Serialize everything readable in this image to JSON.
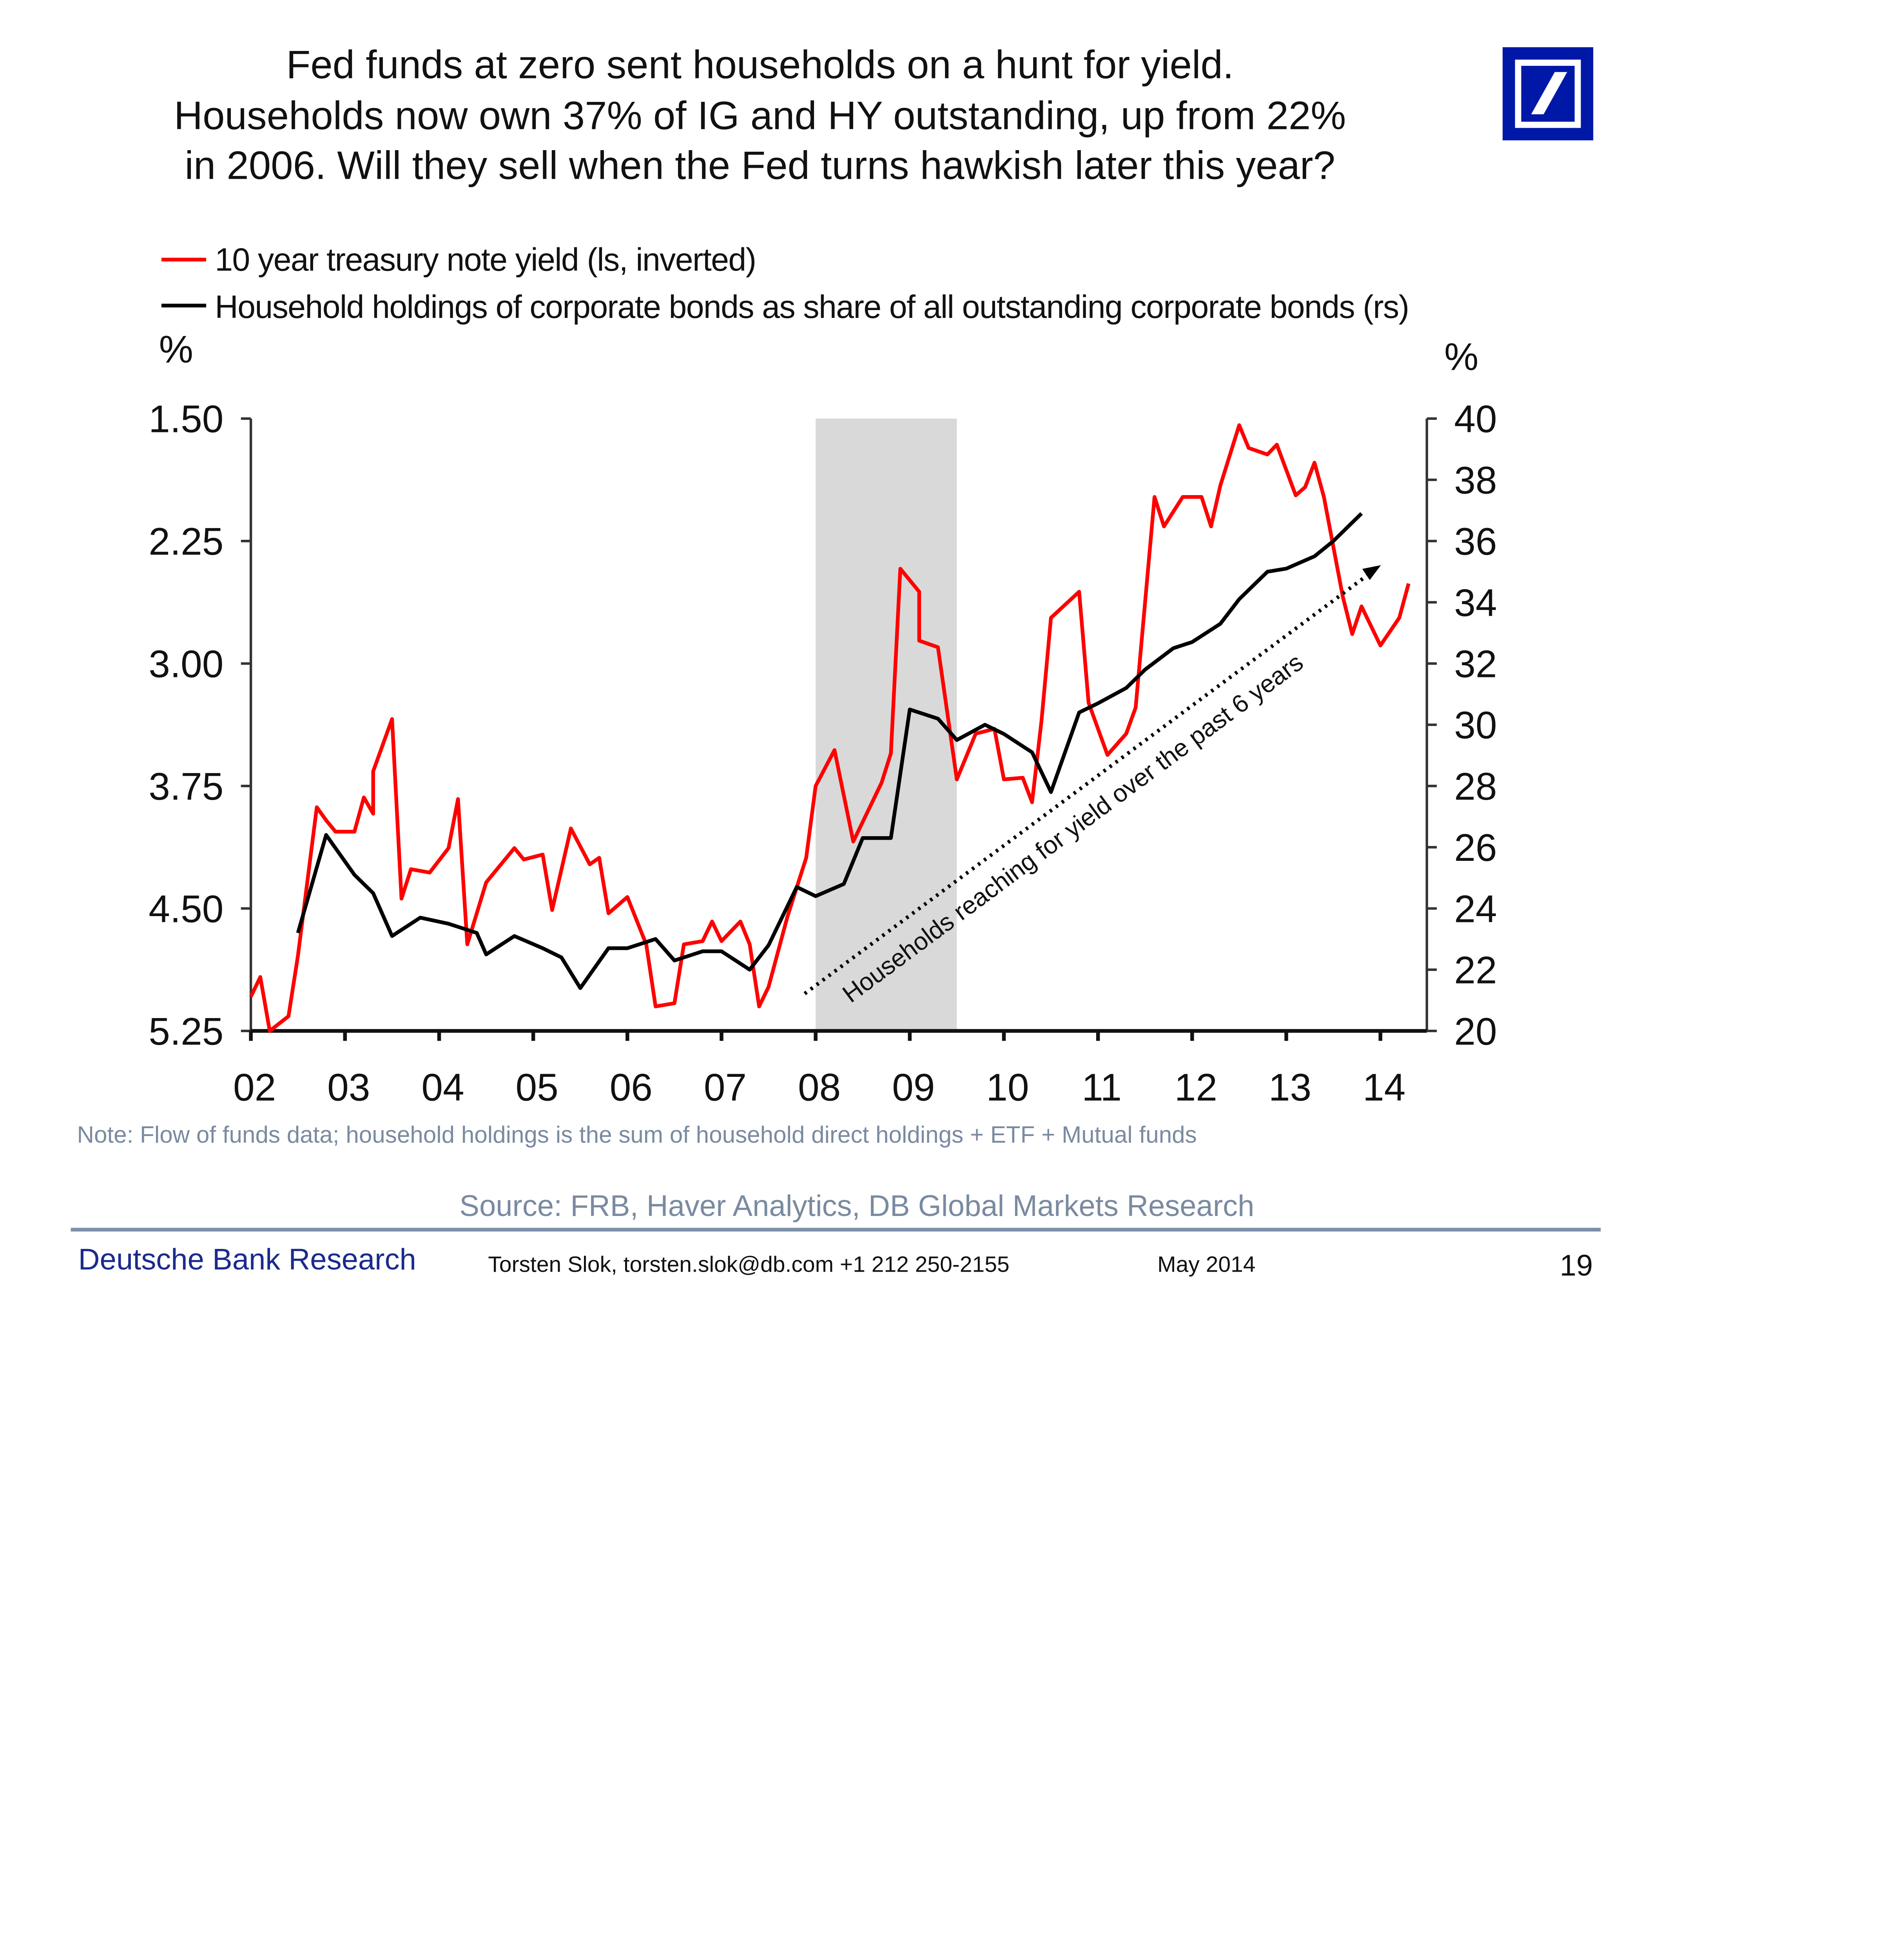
{
  "title_lines": [
    "Fed funds at zero sent households on a hunt for yield.",
    "Households now own 37% of IG and HY outstanding, up from 22%",
    "in 2006. Will they sell when the Fed turns hawkish later this year?"
  ],
  "logo": {
    "name": "Deutsche Bank logo",
    "color": "#0018A8"
  },
  "footer": {
    "brand": "Deutsche Bank Research",
    "contact": "Torsten Slok, torsten.slok@db.com  +1 212 250-2155",
    "date": "May 2014",
    "page": "19"
  },
  "chart_data": {
    "type": "line",
    "title": "",
    "note": "Note: Flow of funds data; household holdings is the sum of household direct holdings + ETF + Mutual funds",
    "source": "Source: FRB, Haver Analytics, DB Global Markets Research",
    "legend_position": "top-left",
    "left_axis": {
      "unit": "%",
      "ticks": [
        "1.50",
        "2.25",
        "3.00",
        "3.75",
        "4.50",
        "5.25"
      ],
      "range": [
        1.5,
        5.25
      ],
      "inverted": true
    },
    "right_axis": {
      "unit": "%",
      "ticks": [
        "40",
        "38",
        "36",
        "34",
        "32",
        "30",
        "28",
        "26",
        "24",
        "22",
        "20"
      ],
      "range": [
        20,
        40
      ]
    },
    "x_axis": {
      "ticks": [
        "02",
        "03",
        "04",
        "05",
        "06",
        "07",
        "08",
        "09",
        "10",
        "11",
        "12",
        "13",
        "14"
      ],
      "range": [
        2002,
        2014.4
      ]
    },
    "grid": false,
    "shaded_region": {
      "from": 2008.0,
      "to": 2009.5,
      "color": "#d9d9d9"
    },
    "annotation": "Households reaching for yield over the past 6 years",
    "series": [
      {
        "name": "10 year treasury note yield (ls, inverted)",
        "axis": "left",
        "color": "#ff0000",
        "points": [
          [
            2002.0,
            5.04
          ],
          [
            2002.1,
            4.92
          ],
          [
            2002.2,
            5.25
          ],
          [
            2002.4,
            5.16
          ],
          [
            2002.5,
            4.79
          ],
          [
            2002.7,
            3.88
          ],
          [
            2002.8,
            3.96
          ],
          [
            2002.9,
            4.03
          ],
          [
            2003.1,
            4.03
          ],
          [
            2003.2,
            3.82
          ],
          [
            2003.3,
            3.92
          ],
          [
            2003.3,
            3.66
          ],
          [
            2003.5,
            3.34
          ],
          [
            2003.6,
            4.44
          ],
          [
            2003.7,
            4.26
          ],
          [
            2003.9,
            4.28
          ],
          [
            2004.1,
            4.13
          ],
          [
            2004.2,
            3.83
          ],
          [
            2004.3,
            4.72
          ],
          [
            2004.5,
            4.34
          ],
          [
            2004.8,
            4.13
          ],
          [
            2004.9,
            4.2
          ],
          [
            2005.1,
            4.17
          ],
          [
            2005.2,
            4.51
          ],
          [
            2005.4,
            4.01
          ],
          [
            2005.6,
            4.23
          ],
          [
            2005.7,
            4.19
          ],
          [
            2005.8,
            4.53
          ],
          [
            2006.0,
            4.43
          ],
          [
            2006.2,
            4.72
          ],
          [
            2006.3,
            5.1
          ],
          [
            2006.5,
            5.08
          ],
          [
            2006.6,
            4.72
          ],
          [
            2006.8,
            4.7
          ],
          [
            2006.9,
            4.58
          ],
          [
            2007.0,
            4.7
          ],
          [
            2007.2,
            4.58
          ],
          [
            2007.3,
            4.72
          ],
          [
            2007.4,
            5.1
          ],
          [
            2007.5,
            4.98
          ],
          [
            2007.7,
            4.55
          ],
          [
            2007.9,
            4.19
          ],
          [
            2008.0,
            3.75
          ],
          [
            2008.2,
            3.53
          ],
          [
            2008.4,
            4.09
          ],
          [
            2008.7,
            3.73
          ],
          [
            2008.8,
            3.55
          ],
          [
            2008.9,
            2.42
          ],
          [
            2009.1,
            2.56
          ],
          [
            2009.1,
            2.86
          ],
          [
            2009.3,
            2.9
          ],
          [
            2009.5,
            3.71
          ],
          [
            2009.6,
            3.57
          ],
          [
            2009.7,
            3.43
          ],
          [
            2009.9,
            3.4
          ],
          [
            2010.0,
            3.71
          ],
          [
            2010.2,
            3.7
          ],
          [
            2010.3,
            3.85
          ],
          [
            2010.4,
            3.35
          ],
          [
            2010.5,
            2.72
          ],
          [
            2010.8,
            2.56
          ],
          [
            2010.9,
            3.24
          ],
          [
            2011.1,
            3.56
          ],
          [
            2011.3,
            3.43
          ],
          [
            2011.4,
            3.27
          ],
          [
            2011.6,
            1.98
          ],
          [
            2011.7,
            2.16
          ],
          [
            2011.9,
            1.98
          ],
          [
            2012.1,
            1.98
          ],
          [
            2012.2,
            2.16
          ],
          [
            2012.3,
            1.91
          ],
          [
            2012.5,
            1.54
          ],
          [
            2012.6,
            1.68
          ],
          [
            2012.8,
            1.72
          ],
          [
            2012.9,
            1.66
          ],
          [
            2013.1,
            1.97
          ],
          [
            2013.2,
            1.92
          ],
          [
            2013.3,
            1.77
          ],
          [
            2013.4,
            1.98
          ],
          [
            2013.6,
            2.59
          ],
          [
            2013.7,
            2.82
          ],
          [
            2013.8,
            2.65
          ],
          [
            2014.0,
            2.89
          ],
          [
            2014.2,
            2.72
          ],
          [
            2014.3,
            2.51
          ]
        ]
      },
      {
        "name": "Household holdings of corporate bonds as share of all outstanding corporate bonds (rs)",
        "axis": "right",
        "color": "#000000",
        "points": [
          [
            2002.5,
            23.2
          ],
          [
            2002.8,
            26.4
          ],
          [
            2003.1,
            25.1
          ],
          [
            2003.3,
            24.5
          ],
          [
            2003.5,
            23.1
          ],
          [
            2003.8,
            23.7
          ],
          [
            2004.1,
            23.5
          ],
          [
            2004.4,
            23.2
          ],
          [
            2004.5,
            22.5
          ],
          [
            2004.8,
            23.1
          ],
          [
            2005.1,
            22.7
          ],
          [
            2005.3,
            22.4
          ],
          [
            2005.5,
            21.4
          ],
          [
            2005.8,
            22.7
          ],
          [
            2006.0,
            22.7
          ],
          [
            2006.3,
            23.0
          ],
          [
            2006.5,
            22.3
          ],
          [
            2006.8,
            22.6
          ],
          [
            2007.0,
            22.6
          ],
          [
            2007.3,
            22.0
          ],
          [
            2007.5,
            22.8
          ],
          [
            2007.8,
            24.7
          ],
          [
            2008.0,
            24.4
          ],
          [
            2008.3,
            24.8
          ],
          [
            2008.5,
            26.3
          ],
          [
            2008.8,
            26.3
          ],
          [
            2009.0,
            30.5
          ],
          [
            2009.3,
            30.2
          ],
          [
            2009.5,
            29.5
          ],
          [
            2009.8,
            30.0
          ],
          [
            2010.0,
            29.7
          ],
          [
            2010.3,
            29.1
          ],
          [
            2010.5,
            27.8
          ],
          [
            2010.8,
            30.4
          ],
          [
            2011.0,
            30.7
          ],
          [
            2011.3,
            31.2
          ],
          [
            2011.5,
            31.8
          ],
          [
            2011.8,
            32.5
          ],
          [
            2012.0,
            32.7
          ],
          [
            2012.3,
            33.3
          ],
          [
            2012.5,
            34.1
          ],
          [
            2012.8,
            35.0
          ],
          [
            2013.0,
            35.1
          ],
          [
            2013.3,
            35.5
          ],
          [
            2013.5,
            36.0
          ],
          [
            2013.8,
            36.9
          ]
        ]
      }
    ]
  }
}
